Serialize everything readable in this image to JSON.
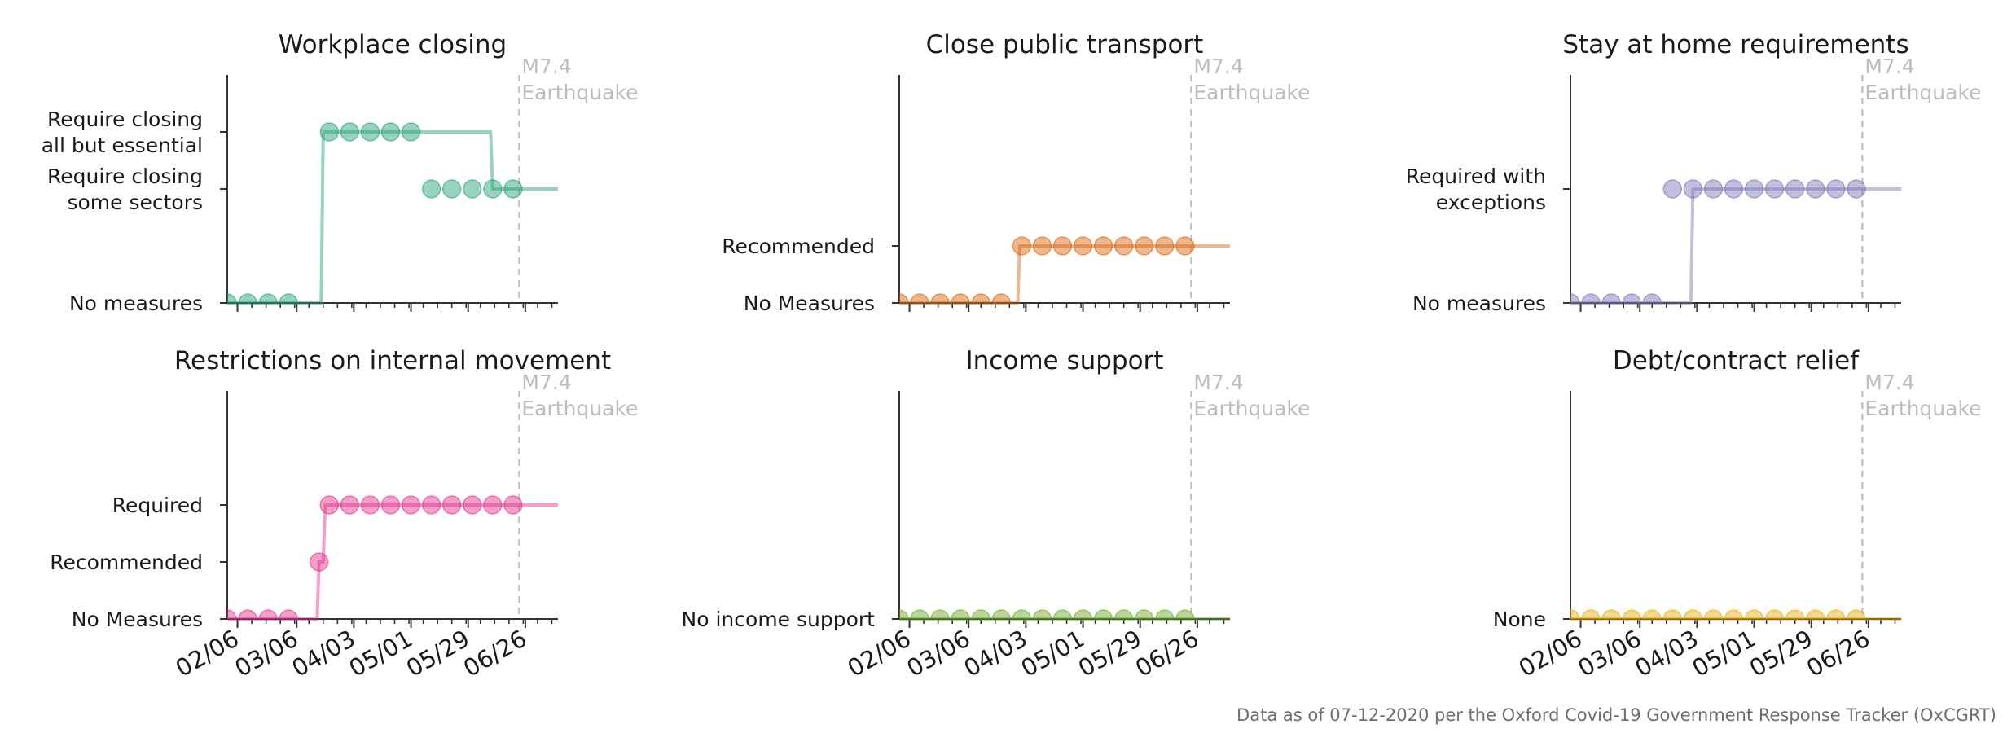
{
  "caption": "Data as of 07-12-2020 per the Oxford Covid-19 Government Response Tracker (OxCGRT)",
  "annotation": {
    "label_line1": "M7.4",
    "label_line2": "Earthquake",
    "date": "06/23",
    "color": "#bdbdbd"
  },
  "chart_data": [
    {
      "type": "line",
      "title": "Workplace closing",
      "color": "#1b9e77",
      "y_levels": [
        {
          "value": 0,
          "label": [
            "No measures"
          ]
        },
        {
          "value": 2,
          "label": [
            "Require closing",
            "some sectors"
          ]
        },
        {
          "value": 3,
          "label": [
            "Require closing",
            "all but essential"
          ]
        }
      ],
      "ylim": [
        0,
        4
      ],
      "xlim": [
        "02/01",
        "07/12"
      ],
      "x_ticks": [
        "02/06",
        "03/06",
        "04/03",
        "05/01",
        "05/29",
        "06/26"
      ],
      "x_tick_labels_shown": false,
      "step_x": [
        "02/01",
        "03/18",
        "03/19",
        "06/09",
        "06/10",
        "07/12"
      ],
      "step_y": [
        0,
        0,
        3,
        3,
        2,
        2
      ],
      "x": [
        "02/01",
        "02/11",
        "02/21",
        "03/02",
        "03/22",
        "04/01",
        "04/11",
        "04/21",
        "05/01",
        "05/11",
        "05/21",
        "05/31",
        "06/10",
        "06/20"
      ],
      "y": [
        0,
        0,
        0,
        0,
        3,
        3,
        3,
        3,
        3,
        2,
        2,
        2,
        2,
        2
      ]
    },
    {
      "type": "line",
      "title": "Close public transport",
      "color": "#d95f02",
      "y_levels": [
        {
          "value": 0,
          "label": [
            "No Measures"
          ]
        },
        {
          "value": 1,
          "label": [
            "Recommended"
          ]
        }
      ],
      "ylim": [
        0,
        4
      ],
      "xlim": [
        "02/01",
        "07/12"
      ],
      "x_ticks": [
        "02/06",
        "03/06",
        "04/03",
        "05/01",
        "05/29",
        "06/26"
      ],
      "x_tick_labels_shown": false,
      "step_x": [
        "02/01",
        "03/30",
        "03/31",
        "07/12"
      ],
      "step_y": [
        0,
        0,
        1,
        1
      ],
      "x": [
        "02/01",
        "02/11",
        "02/21",
        "03/02",
        "03/12",
        "03/22",
        "04/01",
        "04/11",
        "04/21",
        "05/01",
        "05/11",
        "05/21",
        "05/31",
        "06/10",
        "06/20"
      ],
      "y": [
        0,
        0,
        0,
        0,
        0,
        0,
        1,
        1,
        1,
        1,
        1,
        1,
        1,
        1,
        1
      ]
    },
    {
      "type": "line",
      "title": "Stay at home requirements",
      "color": "#7570b3",
      "y_levels": [
        {
          "value": 0,
          "label": [
            "No measures"
          ]
        },
        {
          "value": 2,
          "label": [
            "Required with",
            "exceptions"
          ]
        }
      ],
      "ylim": [
        0,
        4
      ],
      "xlim": [
        "02/01",
        "07/12"
      ],
      "x_ticks": [
        "02/06",
        "03/06",
        "04/03",
        "05/01",
        "05/29",
        "06/26"
      ],
      "x_tick_labels_shown": false,
      "step_x": [
        "02/01",
        "03/31",
        "04/01",
        "07/12"
      ],
      "step_y": [
        0,
        0,
        2,
        2
      ],
      "x": [
        "02/01",
        "02/11",
        "02/21",
        "03/02",
        "03/12",
        "03/22",
        "04/01",
        "04/11",
        "04/21",
        "05/01",
        "05/11",
        "05/21",
        "05/31",
        "06/10",
        "06/20"
      ],
      "y": [
        0,
        0,
        0,
        0,
        0,
        2,
        2,
        2,
        2,
        2,
        2,
        2,
        2,
        2,
        2
      ]
    },
    {
      "type": "line",
      "title": "Restrictions on internal movement",
      "color": "#e7298a",
      "y_levels": [
        {
          "value": 0,
          "label": [
            "No Measures"
          ]
        },
        {
          "value": 1,
          "label": [
            "Recommended"
          ]
        },
        {
          "value": 2,
          "label": [
            "Required"
          ]
        }
      ],
      "ylim": [
        0,
        4
      ],
      "xlim": [
        "02/01",
        "07/12"
      ],
      "x_ticks": [
        "02/06",
        "03/06",
        "04/03",
        "05/01",
        "05/29",
        "06/26"
      ],
      "x_tick_labels_shown": true,
      "step_x": [
        "02/01",
        "03/16",
        "03/17",
        "03/19",
        "03/20",
        "07/12"
      ],
      "step_y": [
        0,
        0,
        1,
        1,
        2,
        2
      ],
      "x": [
        "02/01",
        "02/11",
        "02/21",
        "03/02",
        "03/17",
        "03/22",
        "04/01",
        "04/11",
        "04/21",
        "05/01",
        "05/11",
        "05/21",
        "05/31",
        "06/10",
        "06/20"
      ],
      "y": [
        0,
        0,
        0,
        0,
        1,
        2,
        2,
        2,
        2,
        2,
        2,
        2,
        2,
        2,
        2
      ]
    },
    {
      "type": "line",
      "title": "Income support",
      "color": "#66a61e",
      "y_levels": [
        {
          "value": 0,
          "label": [
            "No income support"
          ]
        }
      ],
      "ylim": [
        0,
        4
      ],
      "xlim": [
        "02/01",
        "07/12"
      ],
      "x_ticks": [
        "02/06",
        "03/06",
        "04/03",
        "05/01",
        "05/29",
        "06/26"
      ],
      "x_tick_labels_shown": true,
      "step_x": [
        "02/01",
        "07/12"
      ],
      "step_y": [
        0,
        0
      ],
      "x": [
        "02/01",
        "02/11",
        "02/21",
        "03/02",
        "03/12",
        "03/22",
        "04/01",
        "04/11",
        "04/21",
        "05/01",
        "05/11",
        "05/21",
        "05/31",
        "06/10",
        "06/20"
      ],
      "y": [
        0,
        0,
        0,
        0,
        0,
        0,
        0,
        0,
        0,
        0,
        0,
        0,
        0,
        0,
        0
      ]
    },
    {
      "type": "line",
      "title": "Debt/contract relief",
      "color": "#e6ab02",
      "y_levels": [
        {
          "value": 0,
          "label": [
            "None"
          ]
        }
      ],
      "ylim": [
        0,
        4
      ],
      "xlim": [
        "02/01",
        "07/12"
      ],
      "x_ticks": [
        "02/06",
        "03/06",
        "04/03",
        "05/01",
        "05/29",
        "06/26"
      ],
      "x_tick_labels_shown": true,
      "step_x": [
        "02/01",
        "07/12"
      ],
      "step_y": [
        0,
        0
      ],
      "x": [
        "02/01",
        "02/11",
        "02/21",
        "03/02",
        "03/12",
        "03/22",
        "04/01",
        "04/11",
        "04/21",
        "05/01",
        "05/11",
        "05/21",
        "05/31",
        "06/10",
        "06/20"
      ],
      "y": [
        0,
        0,
        0,
        0,
        0,
        0,
        0,
        0,
        0,
        0,
        0,
        0,
        0,
        0,
        0
      ]
    }
  ]
}
